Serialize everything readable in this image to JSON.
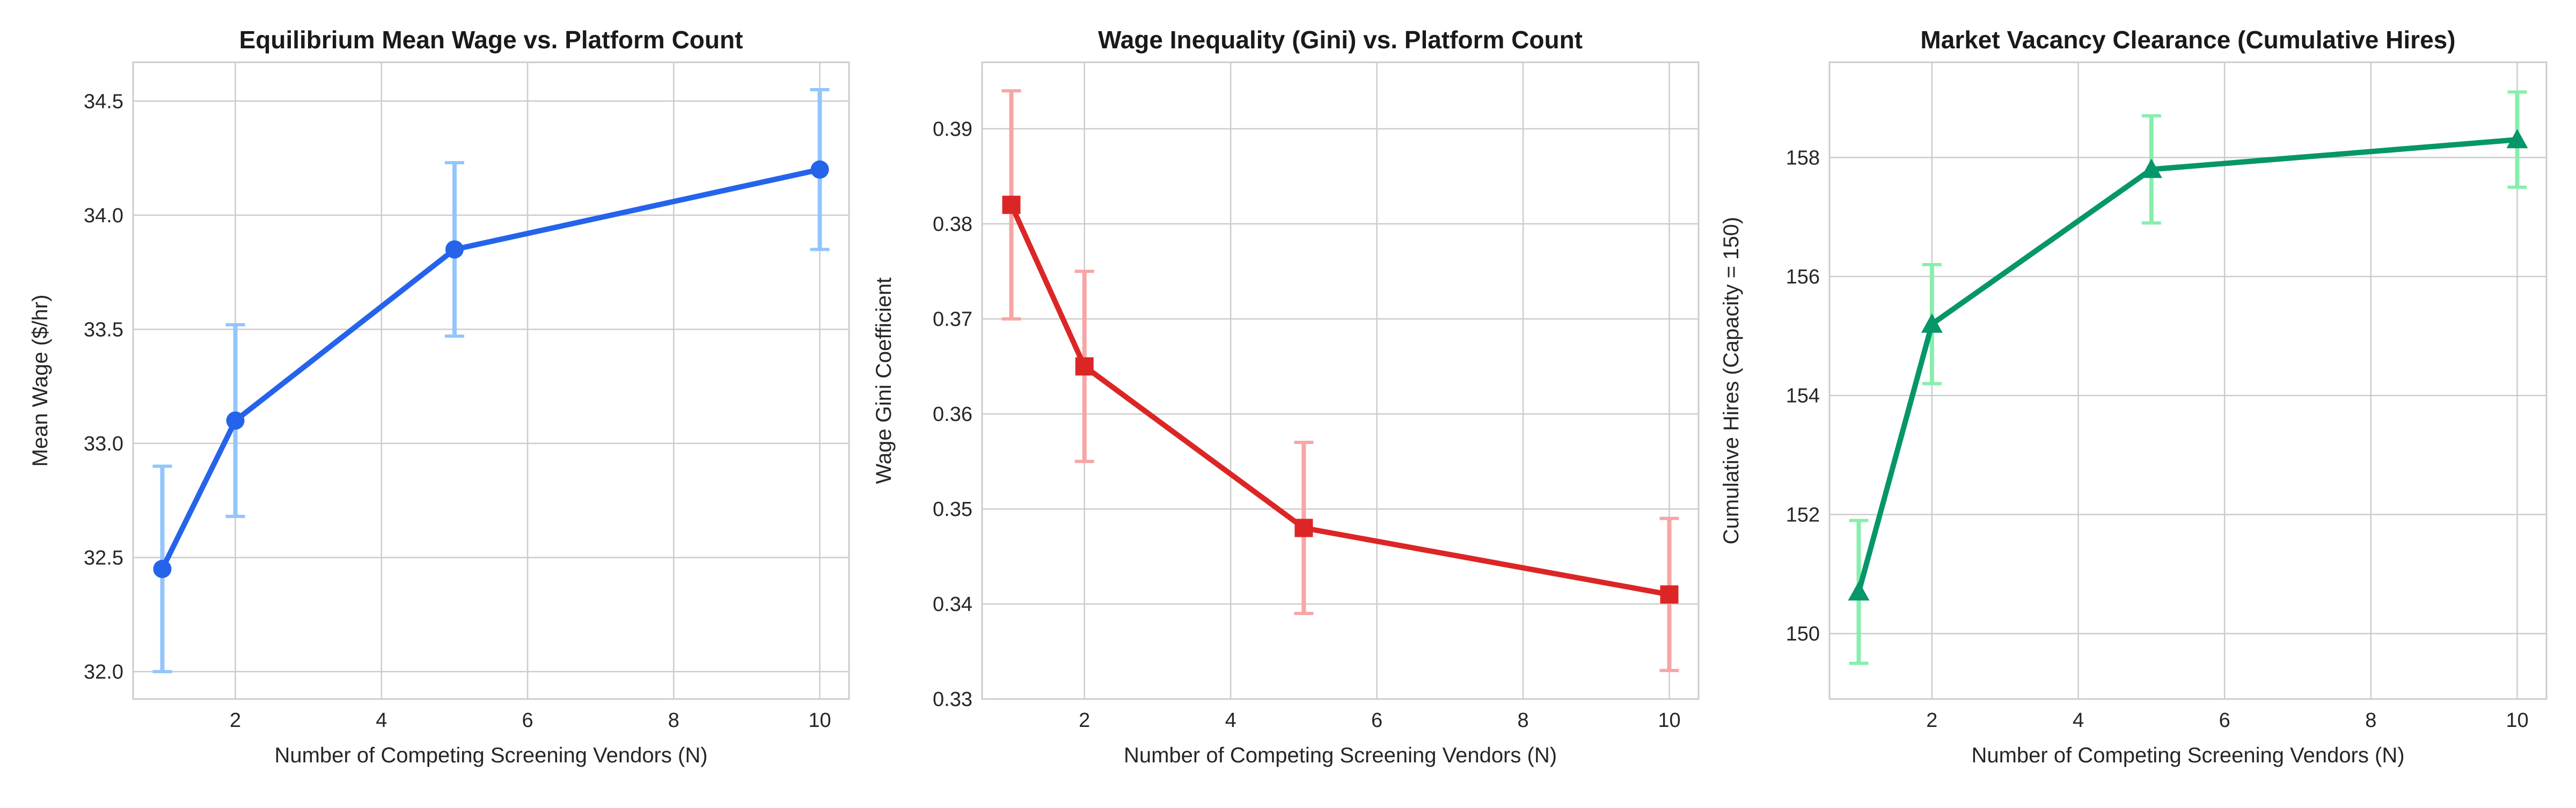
{
  "chart_data": [
    {
      "type": "line",
      "title": "Equilibrium Mean Wage vs. Platform Count",
      "xlabel": "Number of Competing Screening Vendors (N)",
      "ylabel": "Mean Wage ($/hr)",
      "x": [
        1,
        2,
        5,
        10
      ],
      "series": [
        {
          "values": [
            32.45,
            33.1,
            33.85,
            34.2
          ],
          "err_low": [
            32.0,
            32.68,
            33.47,
            33.85
          ],
          "err_high": [
            32.9,
            33.52,
            34.23,
            34.55
          ],
          "color": "#2563eb",
          "err_color": "#93c5fd",
          "marker": "circle"
        }
      ],
      "xlim": [
        0.6,
        10.4
      ],
      "ylim": [
        31.88,
        34.67
      ],
      "xticks": [
        2,
        4,
        6,
        8,
        10
      ],
      "yticks": [
        32.0,
        32.5,
        33.0,
        33.5,
        34.0,
        34.5
      ],
      "ytick_labels": [
        "32.0",
        "32.5",
        "33.0",
        "33.5",
        "34.0",
        "34.5"
      ],
      "grid": true
    },
    {
      "type": "line",
      "title": "Wage Inequality (Gini) vs. Platform Count",
      "xlabel": "Number of Competing Screening Vendors (N)",
      "ylabel": "Wage Gini Coefficient",
      "x": [
        1,
        2,
        5,
        10
      ],
      "series": [
        {
          "values": [
            0.382,
            0.365,
            0.348,
            0.341
          ],
          "err_low": [
            0.37,
            0.355,
            0.339,
            0.333
          ],
          "err_high": [
            0.394,
            0.375,
            0.357,
            0.349
          ],
          "color": "#dc2626",
          "err_color": "#f8a5a5",
          "marker": "square"
        }
      ],
      "xlim": [
        0.6,
        10.4
      ],
      "ylim": [
        0.33,
        0.397
      ],
      "xticks": [
        2,
        4,
        6,
        8,
        10
      ],
      "yticks": [
        0.33,
        0.34,
        0.35,
        0.36,
        0.37,
        0.38,
        0.39
      ],
      "ytick_labels": [
        "0.33",
        "0.34",
        "0.35",
        "0.36",
        "0.37",
        "0.38",
        "0.39"
      ],
      "grid": true
    },
    {
      "type": "line",
      "title": "Market Vacancy Clearance (Cumulative Hires)",
      "xlabel": "Number of Competing Screening Vendors (N)",
      "ylabel": "Cumulative Hires (Capacity = 150)",
      "x": [
        1,
        2,
        5,
        10
      ],
      "series": [
        {
          "values": [
            150.7,
            155.2,
            157.8,
            158.3
          ],
          "err_low": [
            149.5,
            154.2,
            156.9,
            157.5
          ],
          "err_high": [
            151.9,
            156.2,
            158.7,
            159.1
          ],
          "color": "#059669",
          "err_color": "#86efac",
          "marker": "triangle"
        }
      ],
      "xlim": [
        0.6,
        10.4
      ],
      "ylim": [
        148.9,
        159.6
      ],
      "xticks": [
        2,
        4,
        6,
        8,
        10
      ],
      "yticks": [
        150,
        152,
        154,
        156,
        158
      ],
      "ytick_labels": [
        "150",
        "152",
        "154",
        "156",
        "158"
      ],
      "grid": true
    }
  ]
}
